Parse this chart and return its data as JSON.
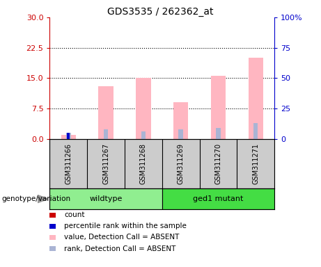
{
  "title": "GDS3535 / 262362_at",
  "samples": [
    "GSM311266",
    "GSM311267",
    "GSM311268",
    "GSM311269",
    "GSM311270",
    "GSM311271"
  ],
  "pink_values": [
    0.9,
    13.0,
    15.0,
    9.0,
    15.5,
    20.0
  ],
  "blue_rank_pct": [
    5.0,
    8.0,
    6.0,
    8.0,
    9.0,
    13.0
  ],
  "red_count": [
    0.5,
    0.0,
    0.0,
    0.0,
    0.0,
    0.0
  ],
  "blue_pct_rank": [
    5.0,
    0.0,
    0.0,
    0.0,
    0.0,
    0.0
  ],
  "left_ylim": [
    0,
    30
  ],
  "right_ylim": [
    0,
    100
  ],
  "left_yticks": [
    0,
    7.5,
    15,
    22.5,
    30
  ],
  "right_yticks": [
    0,
    25,
    50,
    75,
    100
  ],
  "right_yticklabels": [
    "0",
    "25",
    "50",
    "75",
    "100%"
  ],
  "left_color": "#cc0000",
  "right_color": "#0000cc",
  "pink_color": "#ffb6c1",
  "light_blue_color": "#aab4d4",
  "red_marker_color": "#cc0000",
  "blue_marker_color": "#0000cc",
  "sample_bg": "#cccccc",
  "wt_color": "#90ee90",
  "mut_color": "#44dd44",
  "legend_items": [
    {
      "label": "count",
      "color": "#cc0000"
    },
    {
      "label": "percentile rank within the sample",
      "color": "#0000cc"
    },
    {
      "label": "value, Detection Call = ABSENT",
      "color": "#ffb6c1"
    },
    {
      "label": "rank, Detection Call = ABSENT",
      "color": "#aab4d4"
    }
  ],
  "dotted_lines": [
    7.5,
    15.0,
    22.5
  ],
  "bar_width": 0.4,
  "rank_bar_width": 0.12
}
